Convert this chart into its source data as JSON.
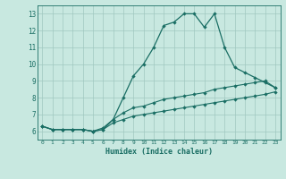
{
  "title": "",
  "xlabel": "Humidex (Indice chaleur)",
  "background_color": "#c8e8e0",
  "grid_color": "#a0c8c0",
  "line_color": "#1a6e64",
  "xlim": [
    -0.5,
    23.5
  ],
  "ylim": [
    5.5,
    13.5
  ],
  "xticks": [
    0,
    1,
    2,
    3,
    4,
    5,
    6,
    7,
    8,
    9,
    10,
    11,
    12,
    13,
    14,
    15,
    16,
    17,
    18,
    19,
    20,
    21,
    22,
    23
  ],
  "yticks": [
    6,
    7,
    8,
    9,
    10,
    11,
    12,
    13
  ],
  "line1_x": [
    0,
    1,
    2,
    3,
    4,
    5,
    6,
    7,
    8,
    9,
    10,
    11,
    12,
    13,
    14,
    15,
    16,
    17,
    18,
    19,
    20,
    21,
    22,
    23
  ],
  "line1_y": [
    6.3,
    6.1,
    6.1,
    6.1,
    6.1,
    6.0,
    6.1,
    6.7,
    8.0,
    9.3,
    10.0,
    11.0,
    12.3,
    12.5,
    13.0,
    13.0,
    12.2,
    13.0,
    11.0,
    9.8,
    9.5,
    9.2,
    8.9,
    8.6
  ],
  "line2_x": [
    0,
    1,
    2,
    3,
    4,
    5,
    6,
    7,
    8,
    9,
    10,
    11,
    12,
    13,
    14,
    15,
    16,
    17,
    18,
    19,
    20,
    21,
    22,
    23
  ],
  "line2_y": [
    6.3,
    6.1,
    6.1,
    6.1,
    6.1,
    6.0,
    6.2,
    6.7,
    7.1,
    7.4,
    7.5,
    7.7,
    7.9,
    8.0,
    8.1,
    8.2,
    8.3,
    8.5,
    8.6,
    8.7,
    8.8,
    8.9,
    9.0,
    8.6
  ],
  "line3_x": [
    0,
    1,
    2,
    3,
    4,
    5,
    6,
    7,
    8,
    9,
    10,
    11,
    12,
    13,
    14,
    15,
    16,
    17,
    18,
    19,
    20,
    21,
    22,
    23
  ],
  "line3_y": [
    6.3,
    6.1,
    6.1,
    6.1,
    6.1,
    6.0,
    6.1,
    6.5,
    6.7,
    6.9,
    7.0,
    7.1,
    7.2,
    7.3,
    7.4,
    7.5,
    7.6,
    7.7,
    7.8,
    7.9,
    8.0,
    8.1,
    8.2,
    8.35
  ]
}
